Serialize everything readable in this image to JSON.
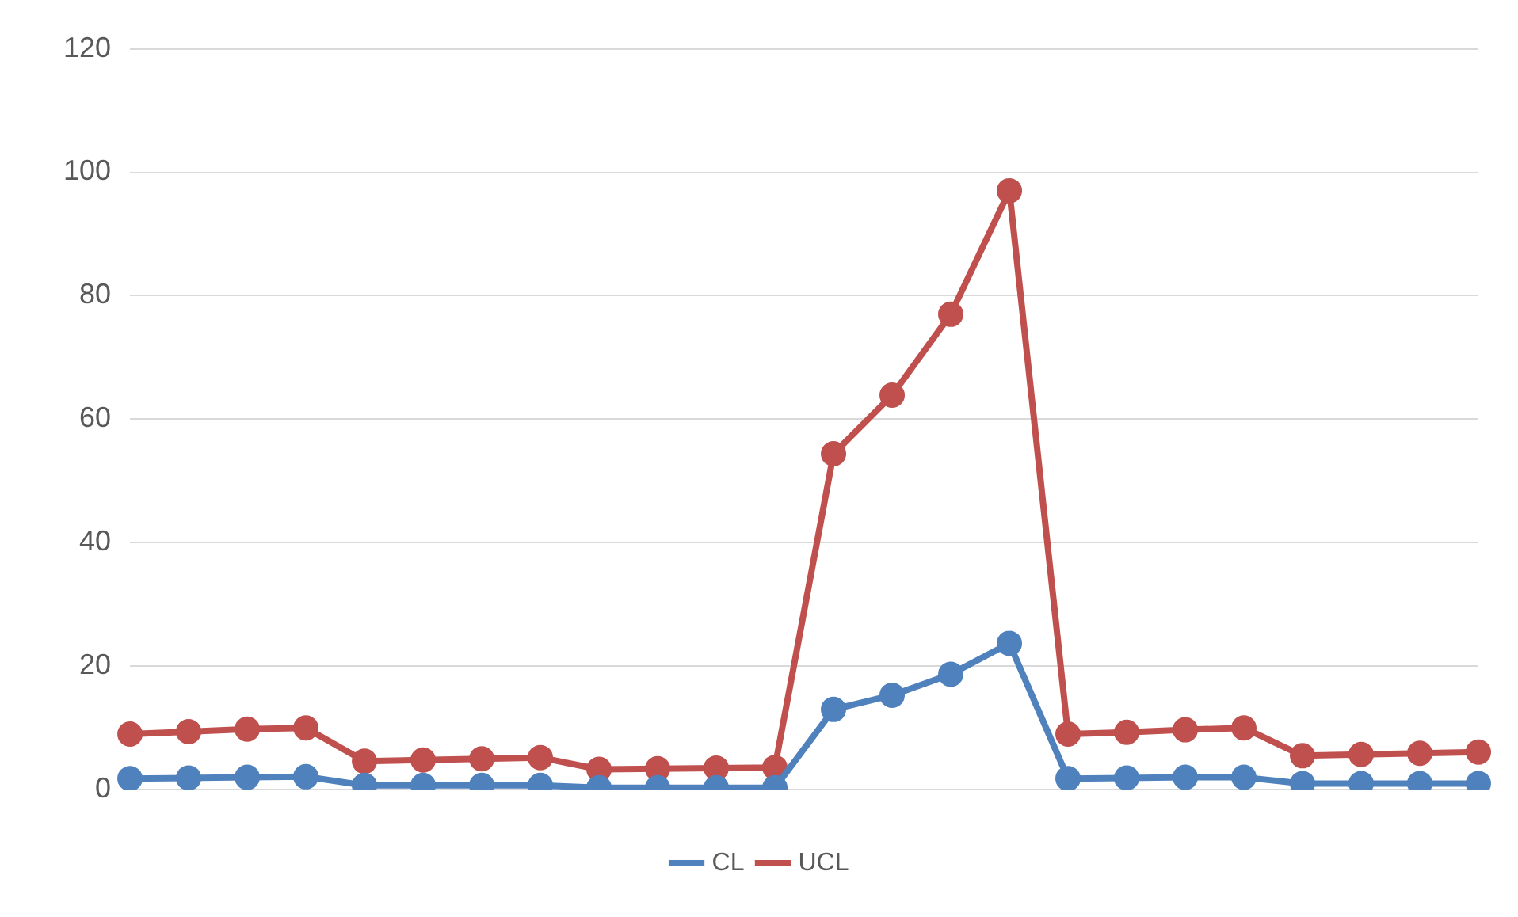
{
  "chart_data": {
    "type": "line",
    "categories": [
      null,
      null,
      null,
      null,
      null,
      null,
      null,
      null,
      null,
      null,
      null,
      null,
      null,
      null,
      null,
      null,
      null,
      null,
      null,
      null,
      null,
      null,
      null,
      null
    ],
    "series": [
      {
        "name": "CL",
        "color": "#4f81bd",
        "values": [
          1.8,
          1.9,
          2.0,
          2.1,
          0.7,
          0.7,
          0.7,
          0.7,
          0.3,
          0.3,
          0.3,
          0.3,
          13.0,
          15.3,
          18.7,
          23.7,
          1.8,
          1.9,
          2.0,
          2.0,
          1.0,
          1.0,
          1.0,
          1.0
        ]
      },
      {
        "name": "UCL",
        "color": "#c0504d",
        "values": [
          9.0,
          9.4,
          9.8,
          10.0,
          4.6,
          4.8,
          5.0,
          5.2,
          3.3,
          3.4,
          3.5,
          3.6,
          54.4,
          63.9,
          77.0,
          97.0,
          9.0,
          9.3,
          9.7,
          10.0,
          5.5,
          5.7,
          5.9,
          6.1
        ]
      }
    ],
    "ylim": [
      0,
      120
    ],
    "yticks": [
      0,
      20,
      40,
      60,
      80,
      100,
      120
    ],
    "grid": "y",
    "legend": "bottom",
    "marker": "circle",
    "line_style": "solid"
  }
}
